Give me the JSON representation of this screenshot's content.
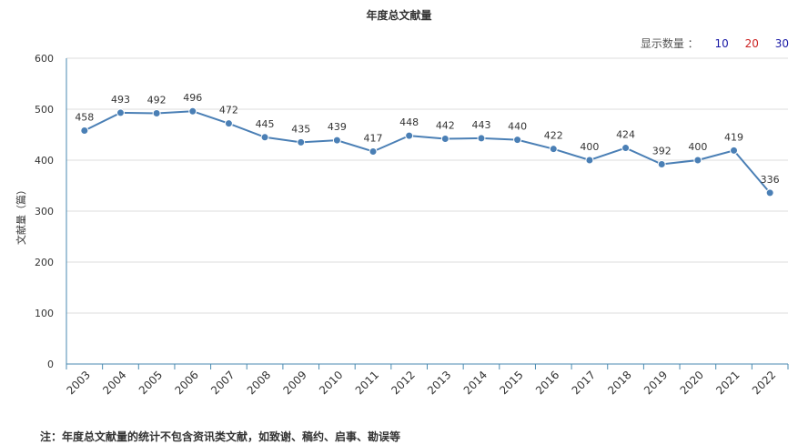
{
  "title": "年度总文献量",
  "count_selector": {
    "label": "显示数量 ：",
    "options": [
      {
        "label": "10",
        "color": "#1a1aa6"
      },
      {
        "label": "20",
        "color": "#cc2222"
      },
      {
        "label": "30",
        "color": "#1a1aa6"
      }
    ]
  },
  "note": "注：年度总文献量的统计不包含资讯类文献，如致谢、稿约、启事、勘误等",
  "chart_data": {
    "type": "line",
    "title": "年度总文献量",
    "ylabel": "文献量（篇）",
    "xlabel": "",
    "ylim": [
      0,
      600
    ],
    "yticks": [
      0,
      100,
      200,
      300,
      400,
      500,
      600
    ],
    "grid": true,
    "line_color": "#4a7fb5",
    "x": [
      "2003",
      "2004",
      "2005",
      "2006",
      "2007",
      "2008",
      "2009",
      "2010",
      "2011",
      "2012",
      "2013",
      "2014",
      "2015",
      "2016",
      "2017",
      "2018",
      "2019",
      "2020",
      "2021",
      "2022"
    ],
    "values": [
      458,
      493,
      492,
      496,
      472,
      445,
      435,
      439,
      417,
      448,
      442,
      443,
      440,
      422,
      400,
      424,
      392,
      400,
      419,
      336
    ]
  }
}
